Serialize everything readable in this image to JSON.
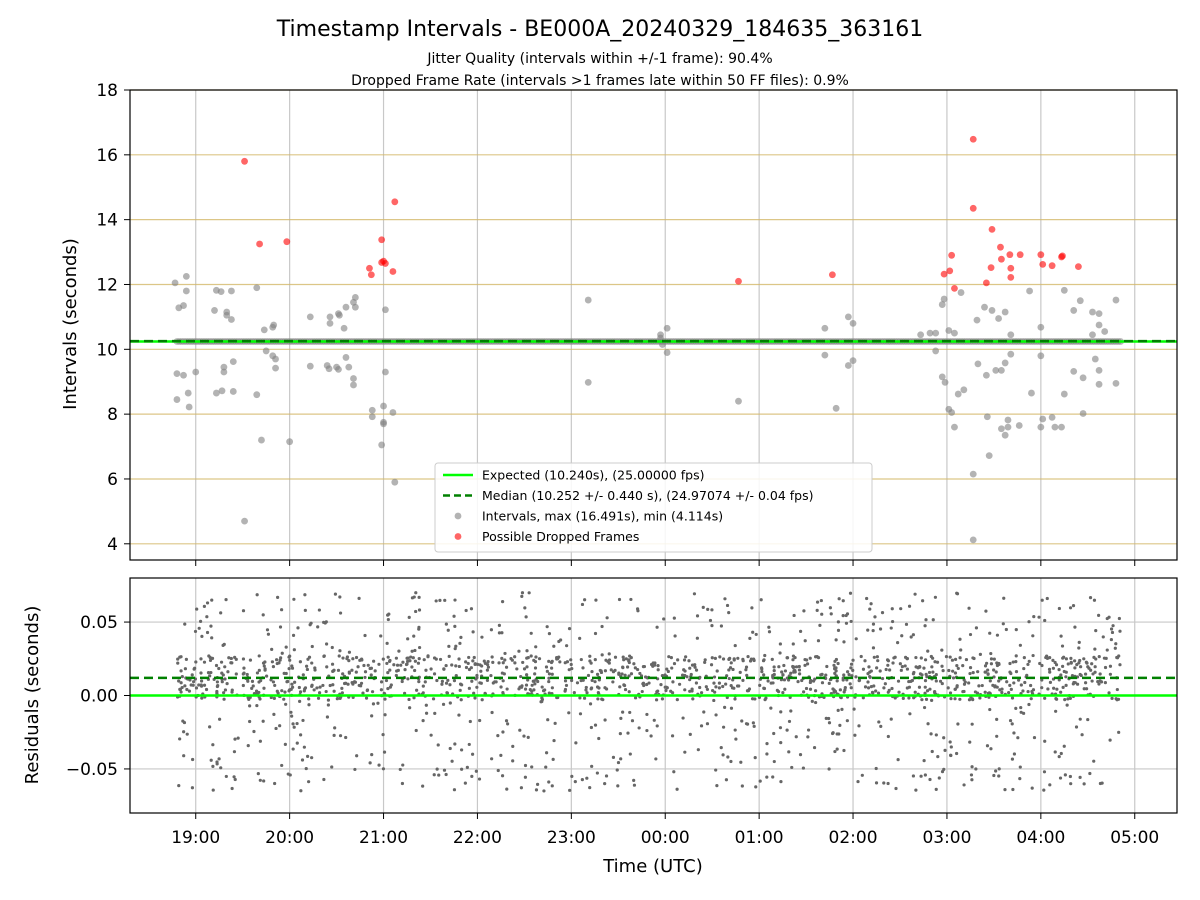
{
  "chart_data": [
    {
      "type": "scatter",
      "title": "Timestamp Intervals - BE000A_20240329_184635_363161",
      "subtitle_lines": [
        "Jitter Quality (intervals within +/-1 frame): 90.4%",
        "Dropped Frame Rate (intervals >1 frames late within 50 FF files): 0.9%"
      ],
      "ylabel": "Intervals (seconds)",
      "ylim": [
        3.5,
        18
      ],
      "yticks": [
        4,
        6,
        8,
        10,
        12,
        14,
        16,
        18
      ],
      "xlim": [
        18.3,
        29.45
      ],
      "grid": {
        "x": true,
        "y_color": "#d4b86a"
      },
      "legend_position": "lower-center",
      "reference_lines": {
        "expected": {
          "label": "Expected (10.240s), (25.00000 fps)",
          "value": 10.24,
          "color": "#00ff00",
          "style": "solid"
        },
        "median": {
          "label": "Median (10.252 +/- 0.440 s), (24.97074 +/- 0.04 fps)",
          "value": 10.252,
          "color": "#008000",
          "style": "dashed"
        }
      },
      "series": [
        {
          "name": "Intervals, max (16.491s), min (4.114s)",
          "color": "#808080",
          "baseline_band": {
            "y": 10.24,
            "x_range": [
              18.8,
              28.85
            ]
          },
          "points": [
            [
              18.78,
              12.05
            ],
            [
              18.8,
              9.25
            ],
            [
              18.8,
              8.45
            ],
            [
              18.82,
              11.28
            ],
            [
              18.87,
              11.35
            ],
            [
              18.9,
              12.25
            ],
            [
              18.9,
              11.8
            ],
            [
              18.87,
              9.2
            ],
            [
              18.92,
              8.65
            ],
            [
              18.93,
              8.22
            ],
            [
              19.0,
              9.3
            ],
            [
              19.22,
              11.82
            ],
            [
              19.27,
              11.78
            ],
            [
              19.2,
              11.2
            ],
            [
              19.22,
              8.65
            ],
            [
              19.28,
              8.72
            ],
            [
              19.3,
              9.45
            ],
            [
              19.3,
              9.3
            ],
            [
              19.33,
              11.15
            ],
            [
              19.38,
              11.8
            ],
            [
              19.38,
              10.92
            ],
            [
              19.4,
              9.62
            ],
            [
              19.4,
              8.7
            ],
            [
              19.33,
              11.05
            ],
            [
              19.52,
              4.7
            ],
            [
              19.65,
              11.9
            ],
            [
              19.65,
              8.6
            ],
            [
              19.7,
              7.2
            ],
            [
              19.73,
              10.6
            ],
            [
              19.75,
              9.95
            ],
            [
              19.82,
              10.68
            ],
            [
              19.82,
              9.8
            ],
            [
              19.83,
              10.75
            ],
            [
              19.85,
              9.7
            ],
            [
              19.85,
              9.42
            ],
            [
              20.0,
              7.15
            ],
            [
              20.22,
              11.0
            ],
            [
              20.22,
              9.48
            ],
            [
              20.43,
              11.0
            ],
            [
              20.43,
              10.8
            ],
            [
              20.4,
              9.5
            ],
            [
              20.42,
              9.4
            ],
            [
              20.52,
              11.1
            ],
            [
              20.53,
              11.05
            ],
            [
              20.5,
              9.45
            ],
            [
              20.52,
              9.38
            ],
            [
              20.58,
              10.65
            ],
            [
              20.6,
              11.3
            ],
            [
              20.6,
              9.75
            ],
            [
              20.63,
              9.45
            ],
            [
              20.68,
              11.45
            ],
            [
              20.68,
              9.1
            ],
            [
              20.68,
              8.9
            ],
            [
              20.7,
              11.6
            ],
            [
              20.7,
              11.3
            ],
            [
              20.88,
              8.12
            ],
            [
              20.88,
              7.92
            ],
            [
              20.98,
              7.05
            ],
            [
              21.0,
              7.7
            ],
            [
              21.0,
              7.75
            ],
            [
              21.02,
              11.22
            ],
            [
              21.02,
              9.3
            ],
            [
              21.0,
              8.25
            ],
            [
              21.1,
              8.05
            ],
            [
              21.12,
              5.9
            ],
            [
              23.18,
              11.52
            ],
            [
              23.18,
              8.98
            ],
            [
              23.95,
              10.45
            ],
            [
              23.95,
              10.35
            ],
            [
              23.97,
              10.15
            ],
            [
              24.02,
              10.65
            ],
            [
              24.02,
              9.9
            ],
            [
              24.78,
              8.4
            ],
            [
              25.7,
              10.65
            ],
            [
              25.7,
              9.82
            ],
            [
              25.82,
              8.18
            ],
            [
              25.95,
              11.0
            ],
            [
              25.95,
              9.5
            ],
            [
              26.0,
              10.8
            ],
            [
              26.0,
              9.65
            ],
            [
              26.72,
              10.45
            ],
            [
              26.82,
              10.5
            ],
            [
              26.88,
              10.5
            ],
            [
              26.88,
              9.95
            ],
            [
              26.95,
              9.15
            ],
            [
              26.95,
              11.38
            ],
            [
              26.97,
              11.55
            ],
            [
              26.98,
              8.98
            ],
            [
              27.02,
              8.15
            ],
            [
              27.02,
              10.58
            ],
            [
              27.05,
              8.05
            ],
            [
              27.08,
              7.6
            ],
            [
              27.08,
              10.5
            ],
            [
              27.12,
              8.62
            ],
            [
              27.15,
              11.75
            ],
            [
              27.18,
              8.75
            ],
            [
              27.28,
              4.12
            ],
            [
              27.28,
              6.15
            ],
            [
              27.32,
              10.9
            ],
            [
              27.33,
              9.55
            ],
            [
              27.4,
              11.3
            ],
            [
              27.42,
              9.2
            ],
            [
              27.43,
              7.92
            ],
            [
              27.45,
              6.72
            ],
            [
              27.48,
              11.2
            ],
            [
              27.52,
              9.35
            ],
            [
              27.55,
              10.95
            ],
            [
              27.58,
              9.35
            ],
            [
              27.58,
              7.55
            ],
            [
              27.62,
              7.35
            ],
            [
              27.62,
              11.15
            ],
            [
              27.62,
              9.58
            ],
            [
              27.65,
              7.82
            ],
            [
              27.65,
              7.6
            ],
            [
              27.68,
              10.45
            ],
            [
              27.68,
              9.85
            ],
            [
              27.77,
              7.65
            ],
            [
              27.88,
              11.8
            ],
            [
              27.9,
              8.65
            ],
            [
              28.0,
              10.68
            ],
            [
              28.0,
              9.8
            ],
            [
              28.0,
              7.6
            ],
            [
              28.02,
              7.85
            ],
            [
              28.12,
              7.9
            ],
            [
              28.15,
              7.6
            ],
            [
              28.22,
              7.6
            ],
            [
              28.25,
              11.82
            ],
            [
              28.25,
              8.62
            ],
            [
              28.35,
              11.2
            ],
            [
              28.35,
              9.32
            ],
            [
              28.42,
              11.5
            ],
            [
              28.45,
              8.02
            ],
            [
              28.45,
              9.12
            ],
            [
              28.55,
              11.15
            ],
            [
              28.55,
              10.45
            ],
            [
              28.58,
              9.7
            ],
            [
              28.62,
              11.1
            ],
            [
              28.62,
              10.75
            ],
            [
              28.62,
              9.35
            ],
            [
              28.68,
              10.55
            ],
            [
              28.62,
              8.92
            ],
            [
              28.8,
              11.52
            ],
            [
              28.8,
              8.95
            ]
          ]
        },
        {
          "name": "Possible Dropped Frames",
          "color": "#ff0000",
          "points": [
            [
              19.52,
              15.8
            ],
            [
              19.68,
              13.25
            ],
            [
              19.97,
              13.32
            ],
            [
              20.85,
              12.5
            ],
            [
              20.87,
              12.3
            ],
            [
              20.98,
              13.38
            ],
            [
              20.98,
              12.68
            ],
            [
              21.0,
              12.72
            ],
            [
              21.02,
              12.65
            ],
            [
              21.1,
              12.4
            ],
            [
              21.12,
              14.55
            ],
            [
              24.78,
              12.1
            ],
            [
              25.78,
              12.3
            ],
            [
              26.97,
              12.32
            ],
            [
              27.03,
              12.42
            ],
            [
              27.05,
              12.9
            ],
            [
              27.08,
              11.88
            ],
            [
              27.28,
              16.48
            ],
            [
              27.28,
              14.35
            ],
            [
              27.42,
              12.05
            ],
            [
              27.47,
              12.52
            ],
            [
              27.48,
              13.7
            ],
            [
              27.57,
              13.15
            ],
            [
              27.58,
              12.78
            ],
            [
              27.67,
              12.92
            ],
            [
              27.68,
              12.5
            ],
            [
              27.68,
              12.22
            ],
            [
              27.78,
              12.92
            ],
            [
              28.0,
              12.92
            ],
            [
              28.02,
              12.62
            ],
            [
              28.12,
              12.58
            ],
            [
              28.22,
              12.85
            ],
            [
              28.23,
              12.88
            ],
            [
              28.4,
              12.55
            ]
          ]
        }
      ]
    },
    {
      "type": "scatter",
      "ylabel": "Residuals (seconds)",
      "xlabel": "Time (UTC)",
      "ylim": [
        -0.08,
        0.08
      ],
      "yticks": [
        -0.05,
        0.0,
        0.05
      ],
      "ytick_labels": [
        "−0.05",
        "0.00",
        "0.05"
      ],
      "xlim": [
        18.3,
        29.45
      ],
      "xtick_values": [
        19,
        20,
        21,
        22,
        23,
        24,
        25,
        26,
        27,
        28,
        29
      ],
      "xtick_labels": [
        "19:00",
        "20:00",
        "21:00",
        "22:00",
        "23:00",
        "00:00",
        "01:00",
        "02:00",
        "03:00",
        "04:00",
        "05:00"
      ],
      "grid": true,
      "reference_lines": {
        "expected": {
          "value": 0.0,
          "color": "#00ff00",
          "style": "solid"
        },
        "median": {
          "value": 0.012,
          "color": "#008000",
          "style": "dashed"
        }
      },
      "series": [
        {
          "color": "#666666",
          "x_range": [
            18.8,
            28.85
          ],
          "spread_range": [
            -0.065,
            0.07
          ],
          "center": 0.012,
          "point_count": 1800
        }
      ]
    }
  ],
  "legend": [
    {
      "label": "Expected (10.240s), (25.00000 fps)",
      "kind": "line",
      "color": "#00ff00",
      "dash": "solid"
    },
    {
      "label": "Median (10.252 +/- 0.440 s), (24.97074 +/- 0.04 fps)",
      "kind": "line",
      "color": "#008000",
      "dash": "dashed"
    },
    {
      "label": "Intervals, max (16.491s), min (4.114s)",
      "kind": "marker",
      "color": "#808080"
    },
    {
      "label": "Possible Dropped Frames",
      "kind": "marker",
      "color": "#ff0000"
    }
  ]
}
